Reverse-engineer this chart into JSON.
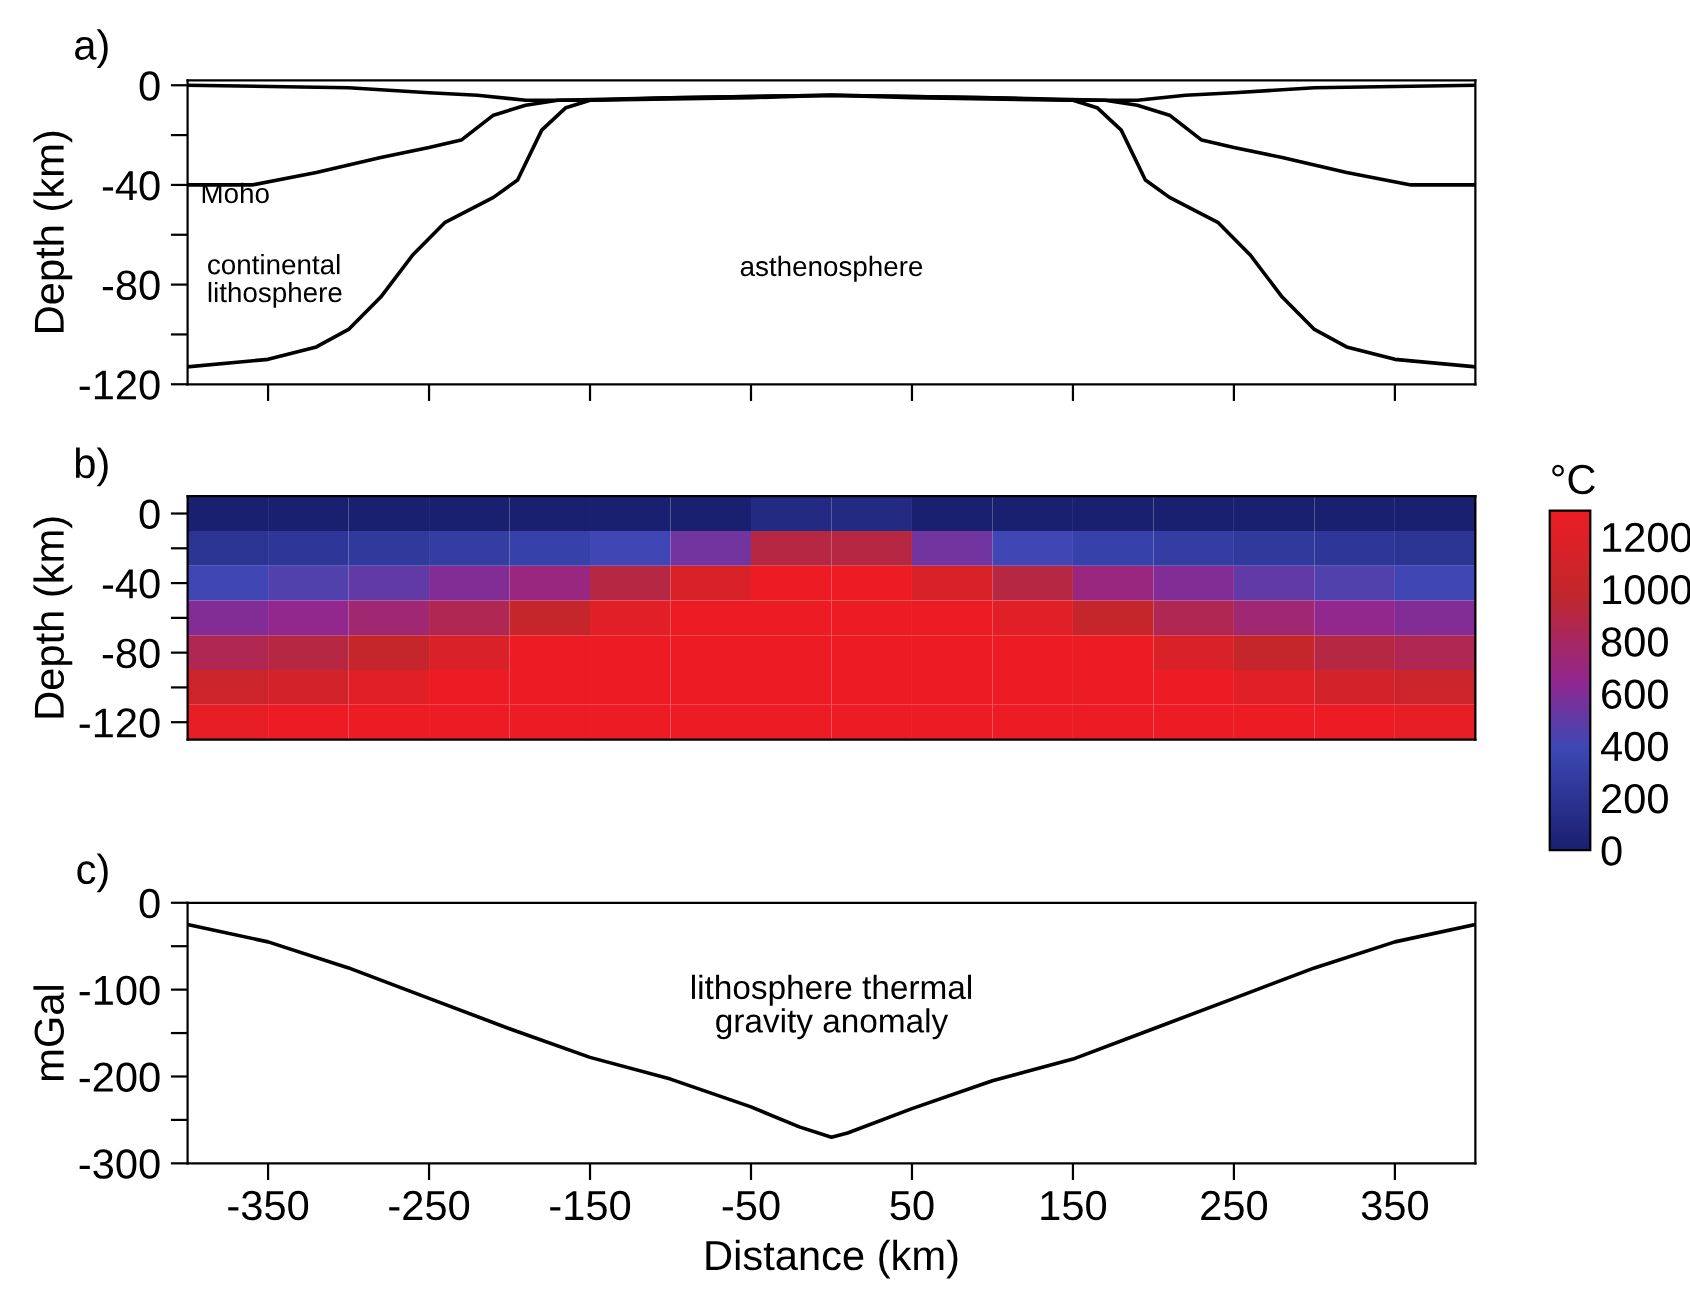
{
  "chart_data": [
    {
      "type": "line",
      "title": "a)",
      "ylabel": "Depth (km)",
      "xlim": [
        -400,
        400
      ],
      "ylim": [
        -120,
        2
      ],
      "xticks": [
        {
          "value": -350,
          "label": null
        },
        {
          "value": -250,
          "label": null
        },
        {
          "value": -150,
          "label": null
        },
        {
          "value": -50,
          "label": null
        },
        {
          "value": 50,
          "label": null
        },
        {
          "value": 150,
          "label": null
        },
        {
          "value": 250,
          "label": null
        },
        {
          "value": 350,
          "label": null
        }
      ],
      "yticks": [
        0,
        {
          "value": -20,
          "label": null
        },
        -40,
        {
          "value": -60,
          "label": null
        },
        -80,
        {
          "value": -100,
          "label": null
        },
        -120
      ],
      "tick_labels": "y",
      "grid": false,
      "legend": false,
      "series": [
        {
          "color": "#000000",
          "x": [
            -400,
            -300,
            -250,
            -220,
            -190,
            -150,
            -50,
            0,
            50,
            150,
            190,
            220,
            250,
            300,
            400
          ],
          "values": [
            0,
            -1,
            -3,
            -4,
            -6,
            -6,
            -5,
            -4,
            -5,
            -6,
            -6,
            -4,
            -3,
            -1,
            0
          ]
        },
        {
          "color": "#000000",
          "x": [
            -400,
            -360,
            -320,
            -280,
            -250,
            -230,
            -210,
            -190,
            -170,
            -100,
            0,
            100,
            170,
            190,
            210,
            230,
            250,
            280,
            320,
            360,
            400
          ],
          "values": [
            -40,
            -40,
            -35,
            -29,
            -25,
            -22,
            -12,
            -8,
            -6,
            -5,
            -4,
            -5,
            -6,
            -8,
            -12,
            -22,
            -25,
            -29,
            -35,
            -40,
            -40
          ]
        },
        {
          "color": "#000000",
          "x": [
            -400,
            -350,
            -320,
            -300,
            -280,
            -260,
            -240,
            -210,
            -195,
            -180,
            -165,
            -150,
            -100,
            0,
            100,
            150,
            165,
            180,
            195,
            210,
            240,
            260,
            280,
            300,
            320,
            350,
            400
          ],
          "values": [
            -113,
            -110,
            -105,
            -98,
            -85,
            -68,
            -55,
            -45,
            -38,
            -18,
            -9,
            -6,
            -5,
            -4,
            -5,
            -6,
            -9,
            -18,
            -38,
            -45,
            -55,
            -68,
            -85,
            -98,
            -105,
            -110,
            -113
          ]
        }
      ],
      "annotations": [
        "Moho",
        "continental\nlithosphere",
        "asthenosphere"
      ]
    },
    {
      "type": "heatmap",
      "title": "b)",
      "ylabel": "Depth (km)",
      "clabel": "°C",
      "categories": [
        null,
        null,
        null,
        null,
        null,
        null,
        null,
        null,
        null,
        null,
        null,
        null,
        null,
        null,
        null,
        null
      ],
      "y_categories": [
        "0",
        null,
        "-40",
        null,
        "-80",
        null,
        "-120"
      ],
      "clim": [
        0,
        1300
      ],
      "cticks": [
        0,
        200,
        400,
        600,
        800,
        1000,
        1200
      ],
      "cells": [
        [
          0,
          0,
          0,
          0,
          0,
          0,
          0,
          100,
          100,
          0,
          0,
          0,
          0,
          0,
          0,
          0
        ],
        [
          200,
          220,
          250,
          280,
          330,
          400,
          550,
          900,
          900,
          550,
          400,
          330,
          280,
          250,
          220,
          200
        ],
        [
          400,
          450,
          500,
          600,
          700,
          900,
          1150,
          1300,
          1300,
          1150,
          900,
          700,
          600,
          500,
          450,
          400
        ],
        [
          600,
          650,
          750,
          850,
          1000,
          1200,
          1300,
          1300,
          1300,
          1300,
          1200,
          1000,
          850,
          750,
          650,
          600
        ],
        [
          850,
          900,
          1000,
          1150,
          1300,
          1300,
          1300,
          1300,
          1300,
          1300,
          1300,
          1300,
          1150,
          1000,
          900,
          850
        ],
        [
          1050,
          1100,
          1200,
          1300,
          1300,
          1300,
          1300,
          1300,
          1300,
          1300,
          1300,
          1300,
          1300,
          1200,
          1100,
          1050
        ],
        [
          1250,
          1300,
          1300,
          1300,
          1300,
          1300,
          1300,
          1300,
          1300,
          1300,
          1300,
          1300,
          1300,
          1300,
          1300,
          1250
        ]
      ]
    },
    {
      "type": "line",
      "title": "c)",
      "ylabel": "mGal",
      "xlabel": "Distance (km)",
      "xlim": [
        -400,
        400
      ],
      "ylim": [
        -300,
        0
      ],
      "xticks": [
        -350,
        -250,
        -150,
        -50,
        50,
        150,
        250,
        350
      ],
      "yticks": [
        0,
        {
          "value": -50,
          "label": null
        },
        -100,
        {
          "value": -150,
          "label": null
        },
        -200,
        {
          "value": -250,
          "label": null
        },
        -300
      ],
      "grid": false,
      "legend": false,
      "series": [
        {
          "color": "#000000",
          "x": [
            -400,
            -350,
            -300,
            -250,
            -200,
            -150,
            -100,
            -50,
            -20,
            0,
            10,
            50,
            100,
            150,
            200,
            250,
            300,
            350,
            400
          ],
          "values": [
            -25,
            -45,
            -75,
            -110,
            -145,
            -178,
            -203,
            -235,
            -258,
            -270,
            -265,
            -237,
            -205,
            -180,
            -145,
            -110,
            -75,
            -45,
            -25
          ]
        }
      ],
      "annotations": [
        "lithosphere thermal\ngravity anomaly"
      ]
    }
  ]
}
